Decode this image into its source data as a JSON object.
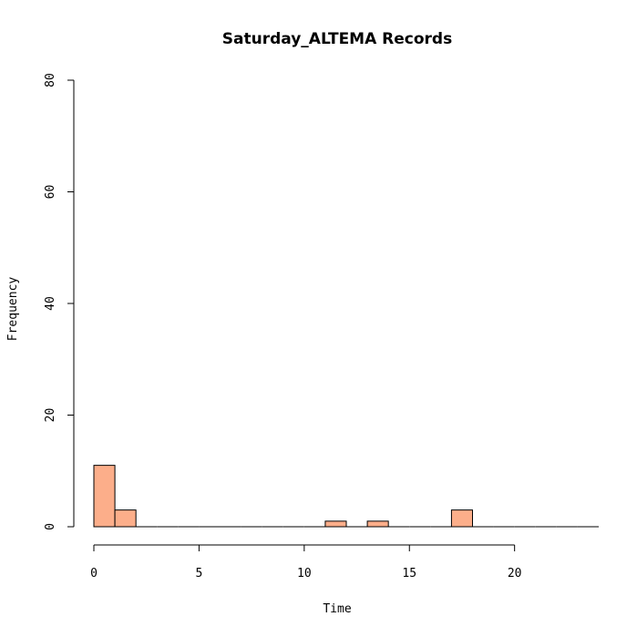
{
  "chart_data": {
    "type": "bar",
    "title": "Saturday_ALTEMA Records",
    "xlabel": "Time",
    "ylabel": "Frequency",
    "xlim": [
      0,
      24
    ],
    "ylim": [
      0,
      80
    ],
    "x_ticks": [
      "0",
      "5",
      "10",
      "15",
      "20"
    ],
    "y_ticks": [
      "0",
      "20",
      "40",
      "60",
      "80"
    ],
    "bin_width": 1,
    "bins": [
      {
        "start": 0,
        "end": 1,
        "value": 11
      },
      {
        "start": 1,
        "end": 2,
        "value": 3
      },
      {
        "start": 2,
        "end": 3,
        "value": 0
      },
      {
        "start": 3,
        "end": 4,
        "value": 0
      },
      {
        "start": 4,
        "end": 5,
        "value": 0
      },
      {
        "start": 5,
        "end": 6,
        "value": 0
      },
      {
        "start": 6,
        "end": 7,
        "value": 0
      },
      {
        "start": 7,
        "end": 8,
        "value": 0
      },
      {
        "start": 8,
        "end": 9,
        "value": 0
      },
      {
        "start": 9,
        "end": 10,
        "value": 0
      },
      {
        "start": 10,
        "end": 11,
        "value": 0
      },
      {
        "start": 11,
        "end": 12,
        "value": 1
      },
      {
        "start": 12,
        "end": 13,
        "value": 0
      },
      {
        "start": 13,
        "end": 14,
        "value": 1
      },
      {
        "start": 14,
        "end": 15,
        "value": 0
      },
      {
        "start": 15,
        "end": 16,
        "value": 0
      },
      {
        "start": 16,
        "end": 17,
        "value": 0
      },
      {
        "start": 17,
        "end": 18,
        "value": 3
      },
      {
        "start": 18,
        "end": 19,
        "value": 0
      },
      {
        "start": 19,
        "end": 20,
        "value": 0
      },
      {
        "start": 20,
        "end": 21,
        "value": 0
      },
      {
        "start": 21,
        "end": 22,
        "value": 0
      },
      {
        "start": 22,
        "end": 23,
        "value": 0
      },
      {
        "start": 23,
        "end": 24,
        "value": 0
      }
    ],
    "bar_color": "#FCAE8A",
    "grid": false,
    "legend": "none"
  }
}
